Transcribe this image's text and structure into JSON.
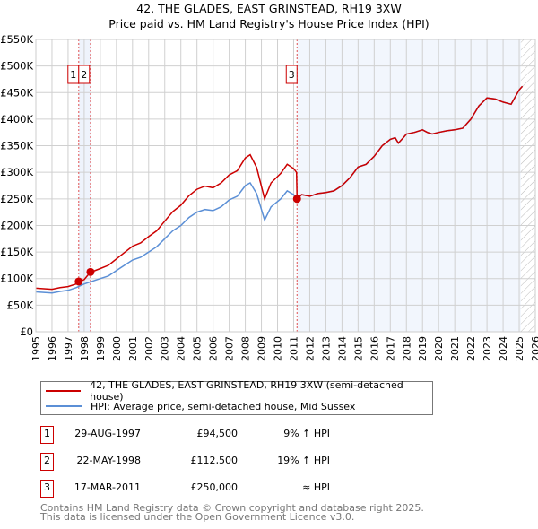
{
  "chart_data": {
    "type": "line",
    "title": "42, THE GLADES, EAST GRINSTEAD, RH19 3XW",
    "subtitle": "Price paid vs. HM Land Registry's House Price Index (HPI)",
    "xlim": [
      1995,
      2026
    ],
    "ylim": [
      0,
      550000
    ],
    "x_ticks": [
      "1995",
      "1996",
      "1997",
      "1998",
      "1999",
      "2000",
      "2001",
      "2002",
      "2003",
      "2004",
      "2005",
      "2006",
      "2007",
      "2008",
      "2009",
      "2010",
      "2011",
      "2012",
      "2013",
      "2014",
      "2015",
      "2016",
      "2017",
      "2018",
      "2019",
      "2020",
      "2021",
      "2022",
      "2023",
      "2024",
      "2025",
      "2026"
    ],
    "y_ticks": [
      {
        "v": 0,
        "label": "£0"
      },
      {
        "v": 50000,
        "label": "£50K"
      },
      {
        "v": 100000,
        "label": "£100K"
      },
      {
        "v": 150000,
        "label": "£150K"
      },
      {
        "v": 200000,
        "label": "£200K"
      },
      {
        "v": 250000,
        "label": "£250K"
      },
      {
        "v": 300000,
        "label": "£300K"
      },
      {
        "v": 350000,
        "label": "£350K"
      },
      {
        "v": 400000,
        "label": "£400K"
      },
      {
        "v": 450000,
        "label": "£450K"
      },
      {
        "v": 500000,
        "label": "£500K"
      },
      {
        "v": 550000,
        "label": "£550K"
      }
    ],
    "grid": true,
    "series": [
      {
        "name": "42, THE GLADES, EAST GRINSTEAD, RH19 3XW (semi-detached house)",
        "color": "#cc0000",
        "x": [
          1995,
          1995.5,
          1996,
          1996.5,
          1997,
          1997.5,
          1997.66,
          1998,
          1998.39,
          1998.5,
          1999,
          1999.5,
          2000,
          2000.5,
          2001,
          2001.5,
          2002,
          2002.5,
          2003,
          2003.5,
          2004,
          2004.5,
          2005,
          2005.5,
          2006,
          2006.5,
          2007,
          2007.5,
          2008,
          2008.3,
          2008.7,
          2009.2,
          2009.6,
          2010.2,
          2010.6,
          2011,
          2011.18,
          2011.21,
          2011.5,
          2012,
          2012.5,
          2013,
          2013.5,
          2014,
          2014.5,
          2015,
          2015.5,
          2016,
          2016.5,
          2017,
          2017.3,
          2017.5,
          2017.8,
          2018,
          2018.5,
          2019,
          2019.3,
          2019.6,
          2020,
          2020.5,
          2021,
          2021.5,
          2022,
          2022.5,
          2023,
          2023.5,
          2024,
          2024.5,
          2025,
          2025.2
        ],
        "y": [
          82000,
          81000,
          80000,
          83000,
          85000,
          90000,
          94500,
          98000,
          112500,
          113000,
          119000,
          125000,
          137000,
          149000,
          161000,
          167000,
          179000,
          190000,
          208000,
          226000,
          238000,
          256000,
          268000,
          274000,
          271000,
          280000,
          295000,
          303000,
          327000,
          333000,
          309000,
          250000,
          280000,
          298000,
          315000,
          307000,
          300000,
          250000,
          258000,
          255000,
          260000,
          262000,
          265000,
          275000,
          290000,
          310000,
          315000,
          330000,
          350000,
          362000,
          365000,
          355000,
          365000,
          372000,
          375000,
          380000,
          375000,
          372000,
          375000,
          378000,
          380000,
          383000,
          400000,
          425000,
          440000,
          438000,
          432000,
          428000,
          455000,
          462000
        ]
      },
      {
        "name": "HPI: Average price, semi-detached house, Mid Sussex",
        "color": "#5b8fd6",
        "x": [
          1995,
          1995.5,
          1996,
          1996.5,
          1997,
          1997.5,
          1998,
          1998.5,
          1999,
          1999.5,
          2000,
          2000.5,
          2001,
          2001.5,
          2002,
          2002.5,
          2003,
          2003.5,
          2004,
          2004.5,
          2005,
          2005.5,
          2006,
          2006.5,
          2007,
          2007.5,
          2008,
          2008.3,
          2008.7,
          2009.2,
          2009.6,
          2010.2,
          2010.6,
          2011,
          2011.21,
          2011.5,
          2012,
          2012.5,
          2013,
          2013.5,
          2014,
          2014.5,
          2015,
          2015.5,
          2016,
          2016.5,
          2017,
          2017.3,
          2017.5,
          2017.8,
          2018,
          2018.5,
          2019,
          2019.3,
          2019.6,
          2020,
          2020.5,
          2021,
          2021.5,
          2022,
          2022.5,
          2023,
          2023.5,
          2024,
          2024.5,
          2025,
          2025.2
        ],
        "y": [
          75000,
          74000,
          73000,
          76000,
          78000,
          83000,
          90000,
          95000,
          100000,
          105000,
          115000,
          125000,
          135000,
          140000,
          150000,
          160000,
          175000,
          190000,
          200000,
          215000,
          225000,
          230000,
          228000,
          235000,
          248000,
          255000,
          275000,
          280000,
          260000,
          210000,
          235000,
          250000,
          265000,
          258000,
          250000,
          258000,
          255000,
          260000,
          262000,
          265000,
          275000,
          290000,
          310000,
          315000,
          330000,
          350000,
          362000,
          365000,
          355000,
          365000,
          372000,
          375000,
          380000,
          375000,
          372000,
          375000,
          378000,
          380000,
          383000,
          400000,
          425000,
          440000,
          438000,
          432000,
          428000,
          455000,
          462000
        ]
      }
    ],
    "sales": [
      {
        "id": "1",
        "x": 1997.66,
        "y": 94500
      },
      {
        "id": "2",
        "x": 1998.39,
        "y": 112500
      },
      {
        "id": "3",
        "x": 2011.21,
        "y": 250000
      }
    ],
    "forecast_hatch_from": 2025.1,
    "legend_position": "below"
  },
  "legend": {
    "property": "42, THE GLADES, EAST GRINSTEAD, RH19 3XW (semi-detached house)",
    "hpi": "HPI: Average price, semi-detached house, Mid Sussex"
  },
  "transactions": [
    {
      "id": "1",
      "date": "29-AUG-1997",
      "price": "£94,500",
      "vs_hpi": "9% ↑ HPI"
    },
    {
      "id": "2",
      "date": "22-MAY-1998",
      "price": "£112,500",
      "vs_hpi": "19% ↑ HPI"
    },
    {
      "id": "3",
      "date": "17-MAR-2011",
      "price": "£250,000",
      "vs_hpi": "≈ HPI"
    }
  ],
  "footer": {
    "line1": "Contains HM Land Registry data © Crown copyright and database right 2025.",
    "line2": "This data is licensed under the Open Government Licence v3.0."
  }
}
